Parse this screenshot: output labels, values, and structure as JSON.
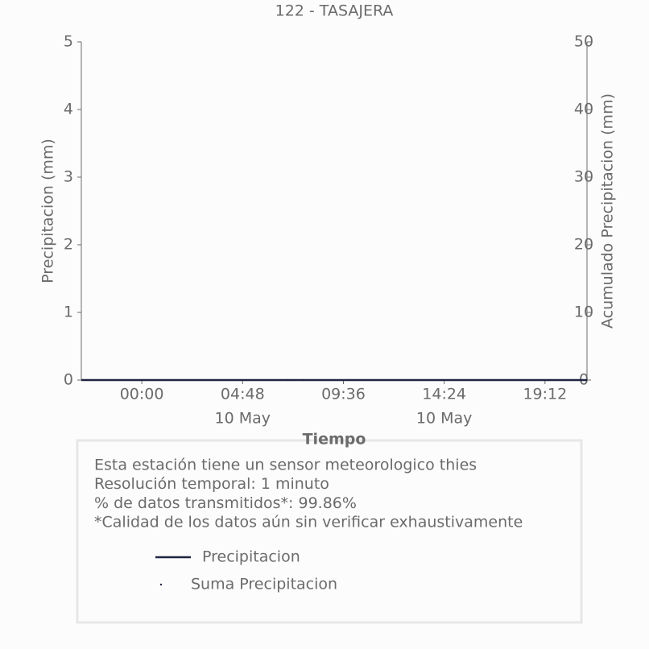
{
  "chart_data": {
    "type": "line",
    "title": "122 - TASAJERA",
    "x_label": "Tiempo",
    "y_label": "Precipitacion (mm)",
    "y2_label": "Acumulado Precipitacion (mm)",
    "xlim": [
      -2.88,
      21.2
    ],
    "xticks": [
      {
        "value": 0,
        "label": [
          "00:00"
        ]
      },
      {
        "value": 4.8,
        "label": [
          "04:48",
          "10 May"
        ]
      },
      {
        "value": 9.6,
        "label": [
          "09:36"
        ]
      },
      {
        "value": 14.4,
        "label": [
          "14:24",
          "10 May"
        ]
      },
      {
        "value": 19.2,
        "label": [
          "19:12"
        ]
      }
    ],
    "ylim": [
      0,
      5
    ],
    "yticks": [
      0,
      1,
      2,
      3,
      4,
      5
    ],
    "y2lim": [
      0,
      50
    ],
    "y2ticks": [
      0,
      10,
      20,
      30,
      40,
      50
    ],
    "series": [
      {
        "name": "Precipitacion",
        "color": "#1f2440",
        "x": [
          -2.88,
          21.2
        ],
        "values": [
          0,
          0
        ]
      },
      {
        "name": "Suma Precipitacion",
        "color": "#1f2440",
        "axis": "y2",
        "marker": "dot",
        "x": [
          6.94,
          7.67
        ],
        "values": [
          0,
          0
        ]
      }
    ],
    "info": [
      "Esta estación tiene un sensor meteorologico thies",
      "Resolución temporal: 1 minuto",
      "% de datos transmitidos*: 99.86%",
      "*Calidad de los datos aún sin verificar exhaustivamente"
    ]
  }
}
